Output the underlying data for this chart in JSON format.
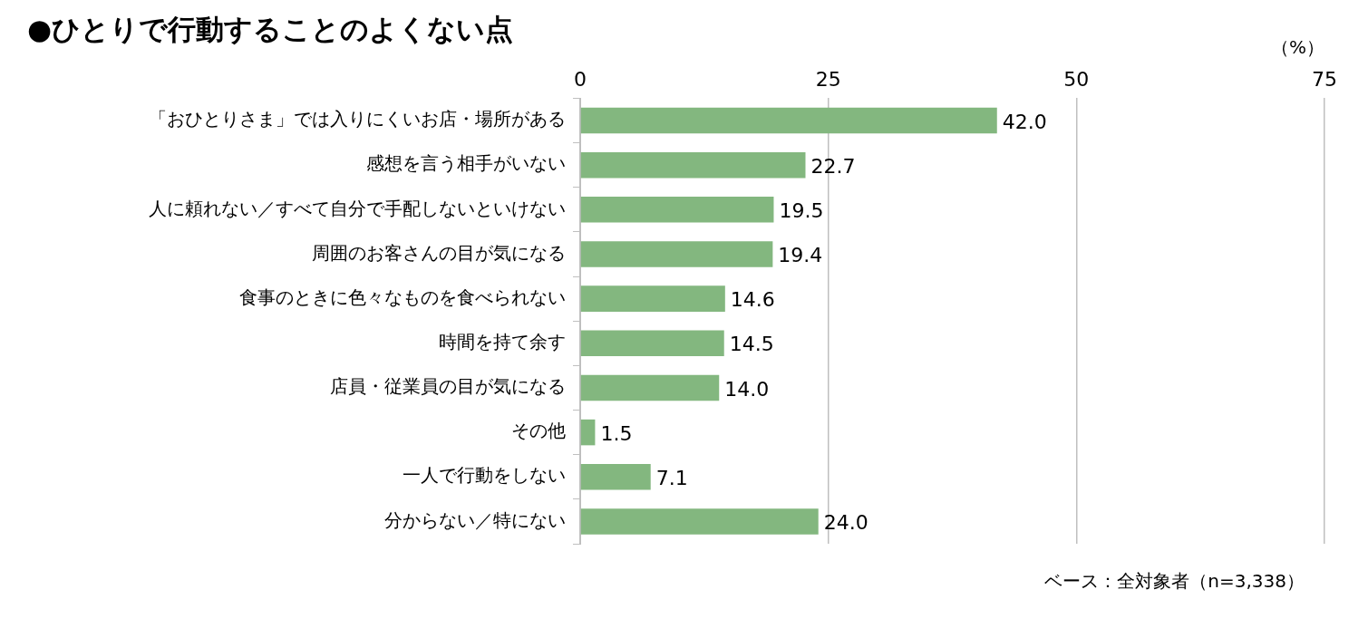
{
  "chart_data": {
    "type": "bar",
    "orientation": "horizontal",
    "title": "●ひとりで行動することのよくない点",
    "xlabel": "（%）",
    "categories": [
      "「おひとりさま」では入りにくいお店・場所がある",
      "感想を言う相手がいない",
      "人に頼れない／すべて自分で手配しないといけない",
      "周囲のお客さんの目が気になる",
      "食事のときに色々なものを食べられない",
      "時間を持て余す",
      "店員・従業員の目が気になる",
      "その他",
      "一人で行動をしない",
      "分からない／特にない"
    ],
    "values": [
      42.0,
      22.7,
      19.5,
      19.4,
      14.6,
      14.5,
      14.0,
      1.5,
      7.1,
      24.0
    ],
    "value_labels": [
      "42.0",
      "22.7",
      "19.5",
      "19.4",
      "14.6",
      "14.5",
      "14.0",
      "1.5",
      "7.1",
      "24.0"
    ],
    "color": "#83b77f",
    "xlim": [
      0,
      75
    ],
    "xticks": [
      0,
      25,
      50,
      75
    ],
    "grid": "x",
    "legend": false,
    "annotations": [
      "ベース：全対象者（n=3,338）"
    ]
  }
}
